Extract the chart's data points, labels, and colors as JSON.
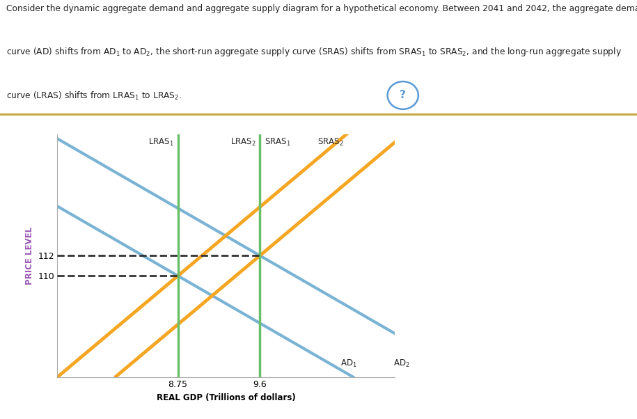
{
  "xlim": [
    7.5,
    11.0
  ],
  "ylim": [
    100,
    124
  ],
  "xlabel": "REAL GDP (Trillions of dollars)",
  "ylabel": "PRICE LEVEL",
  "xticks": [
    8.75,
    9.6
  ],
  "yticks": [
    110,
    112
  ],
  "lras1_x": 8.75,
  "lras2_x": 9.6,
  "price_level_112": 112,
  "price_level_110": 110,
  "ad_color": "#7ab3d4",
  "sras_color": "#f5a623",
  "lras_color": "#6abf69",
  "dashed_color": "#333333",
  "bg_color": "#ffffff",
  "panel_bg": "#f5f5f5",
  "ylabel_color": "#9b59b6",
  "ad_slope": -5.5,
  "sras_slope": 8.0,
  "title_line1": "Consider the dynamic aggregate demand and aggregate supply diagram for a hypothetical economy. Between 2041 and 2042, the aggregate demand",
  "title_line2": "curve (AD) shifts from AD$_1$ to AD$_2$, the short-run aggregate supply curve (SRAS) shifts from SRAS$_1$ to SRAS$_2$, and the long-run aggregate supply",
  "title_line3": "curve (LRAS) shifts from LRAS$_1$ to LRAS$_2$.",
  "sep_color": "#c8a840",
  "qmark_color": "#5b9bd5"
}
